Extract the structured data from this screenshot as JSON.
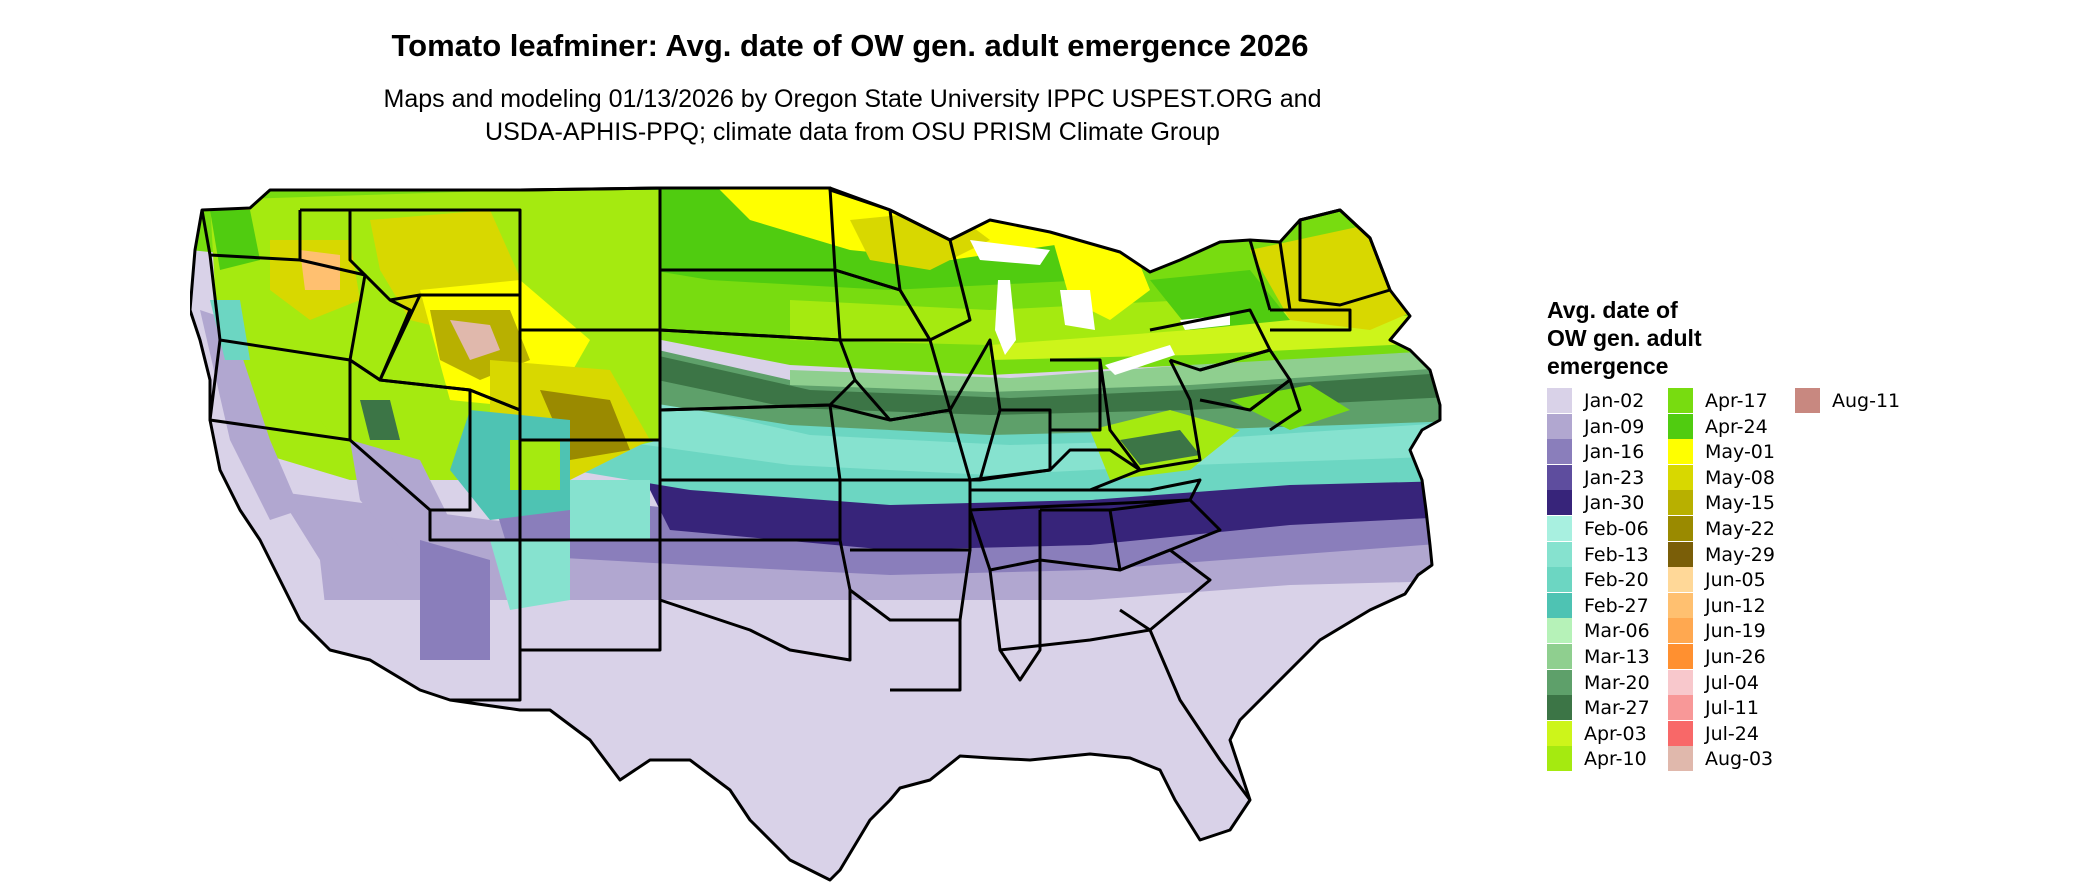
{
  "title": "Tomato leafminer: Avg. date of OW gen. adult emergence 2026",
  "subtitle_line1": "Maps and modeling 01/13/2026 by Oregon State University IPPC USPEST.ORG and",
  "subtitle_line2": "USDA-APHIS-PPQ; climate data from OSU PRISM Climate Group",
  "legend": {
    "title_line1": "Avg. date of",
    "title_line2": "OW gen. adult",
    "title_line3": "emergence",
    "items": [
      {
        "label": "Jan-02",
        "color": "#d9d2e8"
      },
      {
        "label": "Jan-09",
        "color": "#b1a7d0"
      },
      {
        "label": "Jan-16",
        "color": "#8a7ebb"
      },
      {
        "label": "Jan-23",
        "color": "#5e4d9e"
      },
      {
        "label": "Jan-30",
        "color": "#37247a"
      },
      {
        "label": "Feb-06",
        "color": "#a8f0e0"
      },
      {
        "label": "Feb-13",
        "color": "#86e2cf"
      },
      {
        "label": "Feb-20",
        "color": "#6cd6c2"
      },
      {
        "label": "Feb-27",
        "color": "#4ec3b3"
      },
      {
        "label": "Mar-06",
        "color": "#b6f2b8"
      },
      {
        "label": "Mar-13",
        "color": "#8fcf8f"
      },
      {
        "label": "Mar-20",
        "color": "#5ea06a"
      },
      {
        "label": "Mar-27",
        "color": "#3c7546"
      },
      {
        "label": "Apr-03",
        "color": "#cdf51a"
      },
      {
        "label": "Apr-10",
        "color": "#a5ea10"
      },
      {
        "label": "Apr-17",
        "color": "#78dc10"
      },
      {
        "label": "Apr-24",
        "color": "#50cc10"
      },
      {
        "label": "May-01",
        "color": "#ffff00"
      },
      {
        "label": "May-08",
        "color": "#d8d800"
      },
      {
        "label": "May-15",
        "color": "#b8b000"
      },
      {
        "label": "May-22",
        "color": "#9a8a00"
      },
      {
        "label": "May-29",
        "color": "#7a5e08"
      },
      {
        "label": "Jun-05",
        "color": "#ffd898"
      },
      {
        "label": "Jun-12",
        "color": "#ffc070"
      },
      {
        "label": "Jun-19",
        "color": "#ffa850"
      },
      {
        "label": "Jun-26",
        "color": "#ff9030"
      },
      {
        "label": "Jul-04",
        "color": "#f8c8cc"
      },
      {
        "label": "Jul-11",
        "color": "#f89898"
      },
      {
        "label": "Jul-24",
        "color": "#f86868"
      },
      {
        "label": "Aug-03",
        "color": "#e0b8ac"
      },
      {
        "label": "Aug-11",
        "color": "#c88880"
      }
    ]
  }
}
